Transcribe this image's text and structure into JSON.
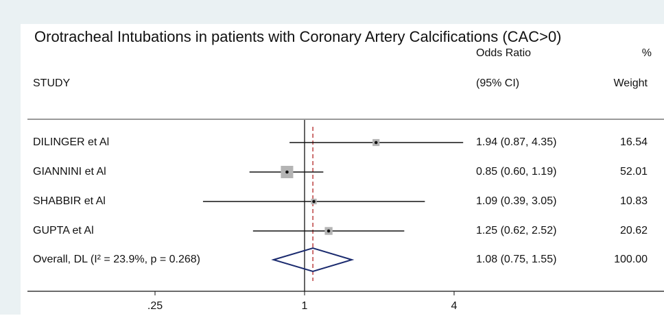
{
  "chart_data": {
    "type": "forest",
    "title": "Orotracheal Intubations in patients with Coronary Artery Calcifications (CAC>0)",
    "headers": {
      "study": "STUDY",
      "or_top": "Odds Ratio",
      "or_bottom": "(95% CI)",
      "weight_top": "%",
      "weight_bottom": "Weight"
    },
    "categories": [
      "DILINGER et Al",
      "GIANNINI et Al",
      "SHABBIR et Al",
      "GUPTA et Al"
    ],
    "estimates": [
      1.94,
      0.85,
      1.09,
      1.25
    ],
    "ci_lower": [
      0.87,
      0.6,
      0.39,
      0.62
    ],
    "ci_upper": [
      4.35,
      1.19,
      3.05,
      2.52
    ],
    "ci_labels": [
      "1.94 (0.87, 4.35)",
      "0.85 (0.60, 1.19)",
      "1.09 (0.39, 3.05)",
      "1.25 (0.62, 2.52)"
    ],
    "weights": [
      16.54,
      52.01,
      10.83,
      20.62
    ],
    "weight_labels": [
      "16.54",
      "52.01",
      "10.83",
      "20.62"
    ],
    "overall": {
      "label": "Overall, DL (I² = 23.9%, p = 0.268)",
      "estimate": 1.08,
      "ci_lower": 0.75,
      "ci_upper": 1.55,
      "ci_label": "1.08 (0.75, 1.55)",
      "weight": 100,
      "weight_label": "100.00"
    },
    "reference_line": 1,
    "xscale": "log",
    "xlim": [
      0.0766,
      28
    ],
    "xticks": [
      {
        "value": 0.25,
        "label": ".25"
      },
      1,
      4
    ],
    "box_color": "#b4b4b4",
    "diamond_color": "#1a2a6e",
    "overall_line_color": "#b22222"
  }
}
